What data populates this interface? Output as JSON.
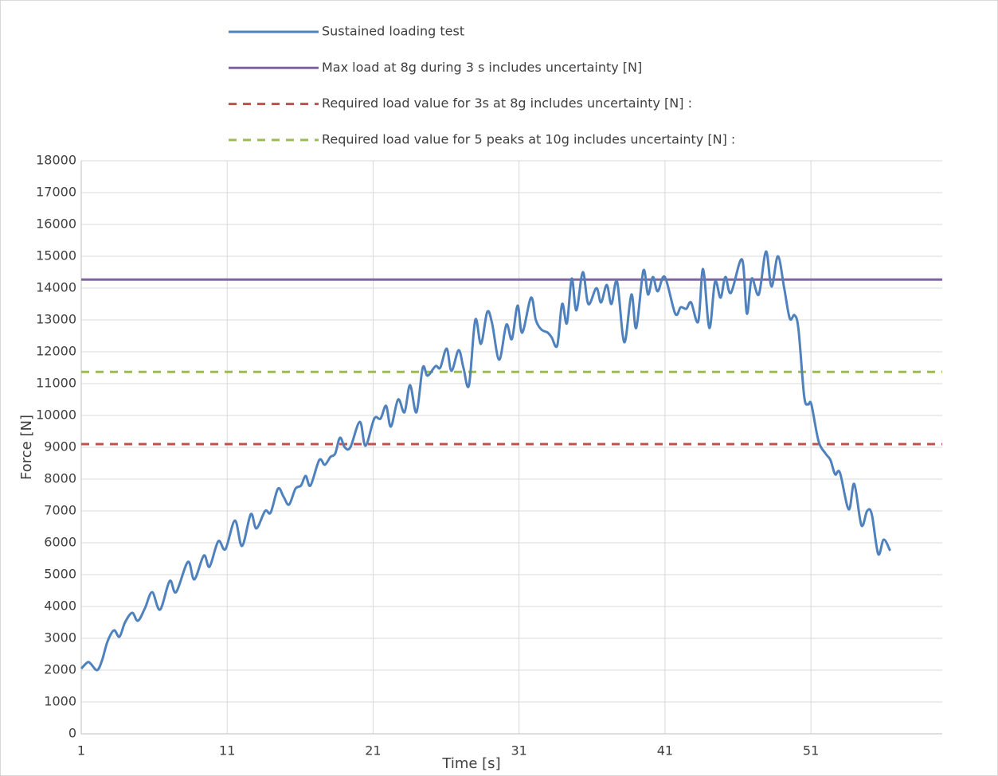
{
  "chart_data": {
    "type": "line",
    "x_label": "Time [s]",
    "y_label": "Force [N]",
    "xlim": [
      1,
      60
    ],
    "xticks": [
      1,
      11,
      21,
      31,
      41,
      51
    ],
    "ylim": [
      0,
      18000
    ],
    "yticks": [
      0,
      1000,
      2000,
      3000,
      4000,
      5000,
      6000,
      7000,
      8000,
      9000,
      10000,
      11000,
      12000,
      13000,
      14000,
      15000,
      16000,
      17000,
      18000
    ],
    "grid": true,
    "legend": "top",
    "series": [
      {
        "name": "Sustained loading test",
        "color": "#4f81bd",
        "line_style": "solid",
        "smooth": true,
        "x": [
          1.0,
          1.44,
          1.65,
          2.09,
          2.42,
          2.8,
          3.24,
          3.62,
          4.0,
          4.49,
          4.88,
          5.37,
          5.86,
          6.4,
          7.06,
          7.5,
          8.31,
          8.75,
          9.4,
          9.79,
          10.39,
          10.88,
          11.53,
          12.02,
          12.62,
          13.0,
          13.6,
          13.98,
          14.48,
          14.86,
          15.24,
          15.68,
          16.06,
          16.38,
          16.71,
          17.31,
          17.69,
          18.08,
          18.4,
          18.73,
          19.06,
          19.44,
          20.09,
          20.48,
          21.08,
          21.51,
          21.89,
          22.22,
          22.71,
          23.15,
          23.53,
          23.97,
          24.4,
          24.73,
          25.28,
          25.6,
          26.04,
          26.37,
          26.86,
          27.19,
          27.57,
          28.0,
          28.39,
          28.82,
          29.15,
          29.64,
          30.13,
          30.51,
          30.9,
          31.22,
          31.82,
          32.15,
          32.53,
          32.97,
          33.24,
          33.62,
          33.95,
          34.28,
          34.61,
          34.93,
          35.37,
          35.75,
          36.3,
          36.62,
          37.01,
          37.33,
          37.72,
          38.21,
          38.7,
          39.03,
          39.52,
          39.84,
          40.17,
          40.5,
          40.99,
          41.7,
          42.08,
          42.46,
          42.79,
          43.28,
          43.61,
          44.04,
          44.43,
          44.81,
          45.14,
          45.52,
          46.28,
          46.61,
          46.94,
          47.43,
          47.92,
          48.3,
          48.74,
          49.17,
          49.55,
          49.88,
          50.15,
          50.54,
          50.81,
          51.03,
          51.52,
          52.01,
          52.34,
          52.66,
          52.99,
          53.59,
          53.97,
          54.46,
          54.85,
          55.17,
          55.61,
          55.99,
          56.43
        ],
        "values": [
          2050,
          2250,
          2200,
          2000,
          2300,
          2900,
          3250,
          3050,
          3500,
          3800,
          3550,
          3950,
          4450,
          3900,
          4800,
          4450,
          5400,
          4850,
          5600,
          5250,
          6050,
          5800,
          6700,
          5900,
          6900,
          6450,
          7000,
          6950,
          7700,
          7450,
          7200,
          7700,
          7800,
          8100,
          7800,
          8600,
          8450,
          8700,
          8800,
          9300,
          9000,
          9000,
          9800,
          9050,
          9900,
          9900,
          10300,
          9650,
          10500,
          10100,
          10950,
          10100,
          11500,
          11250,
          11550,
          11500,
          12100,
          11400,
          12050,
          11500,
          10950,
          13000,
          12250,
          13250,
          12900,
          11750,
          12850,
          12400,
          13450,
          12600,
          13700,
          13000,
          12700,
          12600,
          12450,
          12200,
          13500,
          12900,
          14300,
          13300,
          14500,
          13500,
          14000,
          13550,
          14100,
          13500,
          14200,
          12300,
          13800,
          12750,
          14550,
          13800,
          14350,
          13900,
          14350,
          13200,
          13400,
          13350,
          13550,
          12950,
          14600,
          12750,
          14200,
          13700,
          14350,
          13850,
          14900,
          13200,
          14300,
          13800,
          15150,
          14050,
          15000,
          14000,
          13050,
          13150,
          12700,
          10600,
          10350,
          10350,
          9200,
          8800,
          8600,
          8150,
          8200,
          7050,
          7850,
          6550,
          7000,
          6900,
          5650,
          6100,
          5750
        ]
      },
      {
        "name": "Max load at 8g during 3 s includes uncertainty [N]",
        "color": "#8064a2",
        "line_style": "solid",
        "x": [
          1,
          60
        ],
        "values": [
          14270,
          14270
        ]
      },
      {
        "name": "Required load value for 3s at 8g includes uncertainty [N] :",
        "color": "#c0504d",
        "line_style": "dashed",
        "x": [
          1,
          60
        ],
        "values": [
          9100,
          9100
        ]
      },
      {
        "name": "Required load value for 5 peaks at 10g includes uncertainty [N] :",
        "color": "#9bbb59",
        "line_style": "dashed",
        "x": [
          1,
          60
        ],
        "values": [
          11370,
          11370
        ]
      }
    ]
  }
}
